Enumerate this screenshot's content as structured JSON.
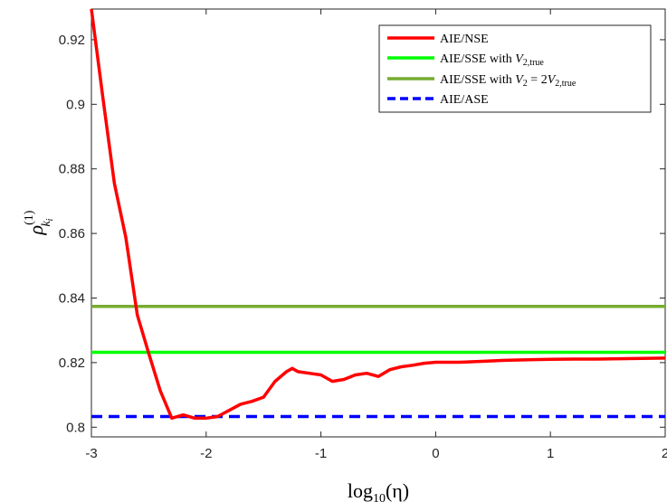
{
  "chart_data": {
    "type": "line",
    "x_ticks": [
      -3,
      -2,
      -1,
      0,
      1,
      2
    ],
    "x_tick_labels": [
      "-3",
      "-2",
      "-1",
      "0",
      "1",
      "2"
    ],
    "y_ticks": [
      0.8,
      0.82,
      0.84,
      0.86,
      0.88,
      0.9,
      0.92
    ],
    "y_tick_labels": [
      "0.8",
      "0.82",
      "0.84",
      "0.86",
      "0.88",
      "0.9",
      "0.92"
    ],
    "xlim": [
      -3,
      2
    ],
    "ylim": [
      0.797,
      0.9295
    ],
    "xlabel": {
      "pre": "log",
      "sub": "10",
      "post": "(η)"
    },
    "ylabel": {
      "base": "ρ",
      "sup": "(1)",
      "sub": "k",
      "subsub": "i"
    },
    "legend_position": "top-right",
    "grid": false,
    "series": [
      {
        "name": "AIE/NSE",
        "color": "#ff0000",
        "style": "solid",
        "x": [
          -3.0,
          -2.9,
          -2.8,
          -2.7,
          -2.6,
          -2.5,
          -2.4,
          -2.3,
          -2.2,
          -2.1,
          -2.0,
          -1.9,
          -1.8,
          -1.7,
          -1.6,
          -1.5,
          -1.4,
          -1.3,
          -1.25,
          -1.2,
          -1.1,
          -1.0,
          -0.9,
          -0.8,
          -0.7,
          -0.6,
          -0.5,
          -0.4,
          -0.3,
          -0.2,
          -0.1,
          0.0,
          0.2,
          0.4,
          0.6,
          0.8,
          1.0,
          1.2,
          1.4,
          1.6,
          1.8,
          2.0
        ],
        "y": [
          0.9295,
          0.902,
          0.8755,
          0.8588,
          0.8348,
          0.8228,
          0.8113,
          0.8028,
          0.8038,
          0.8028,
          0.8028,
          0.8033,
          0.8052,
          0.8071,
          0.808,
          0.8093,
          0.8142,
          0.8172,
          0.8182,
          0.8172,
          0.8167,
          0.8162,
          0.8142,
          0.8148,
          0.8162,
          0.8167,
          0.8157,
          0.8178,
          0.8187,
          0.8192,
          0.8198,
          0.8201,
          0.8201,
          0.8204,
          0.8207,
          0.8209,
          0.821,
          0.8211,
          0.8211,
          0.8212,
          0.8213,
          0.8214
        ]
      },
      {
        "name": "AIE/SSE with V2,true",
        "label_parts": {
          "pre": "AIE/SSE with ",
          "var": "V",
          "sub": "2,true",
          "post": ""
        },
        "color": "#00ff00",
        "style": "solid",
        "x": [
          -3,
          2
        ],
        "y": [
          0.8232,
          0.8232
        ]
      },
      {
        "name": "AIE/SSE with V2 = 2V2,true",
        "label_parts": {
          "pre": "AIE/SSE with ",
          "var": "V",
          "sub": "2",
          "mid": " = 2",
          "var2": "V",
          "sub2": "2,true"
        },
        "color": "#77ac30",
        "style": "solid",
        "x": [
          -3,
          2
        ],
        "y": [
          0.8374,
          0.8374
        ]
      },
      {
        "name": "AIE/ASE",
        "color": "#0000ff",
        "style": "dashed",
        "x": [
          -3,
          2
        ],
        "y": [
          0.8033,
          0.8033
        ]
      }
    ]
  }
}
